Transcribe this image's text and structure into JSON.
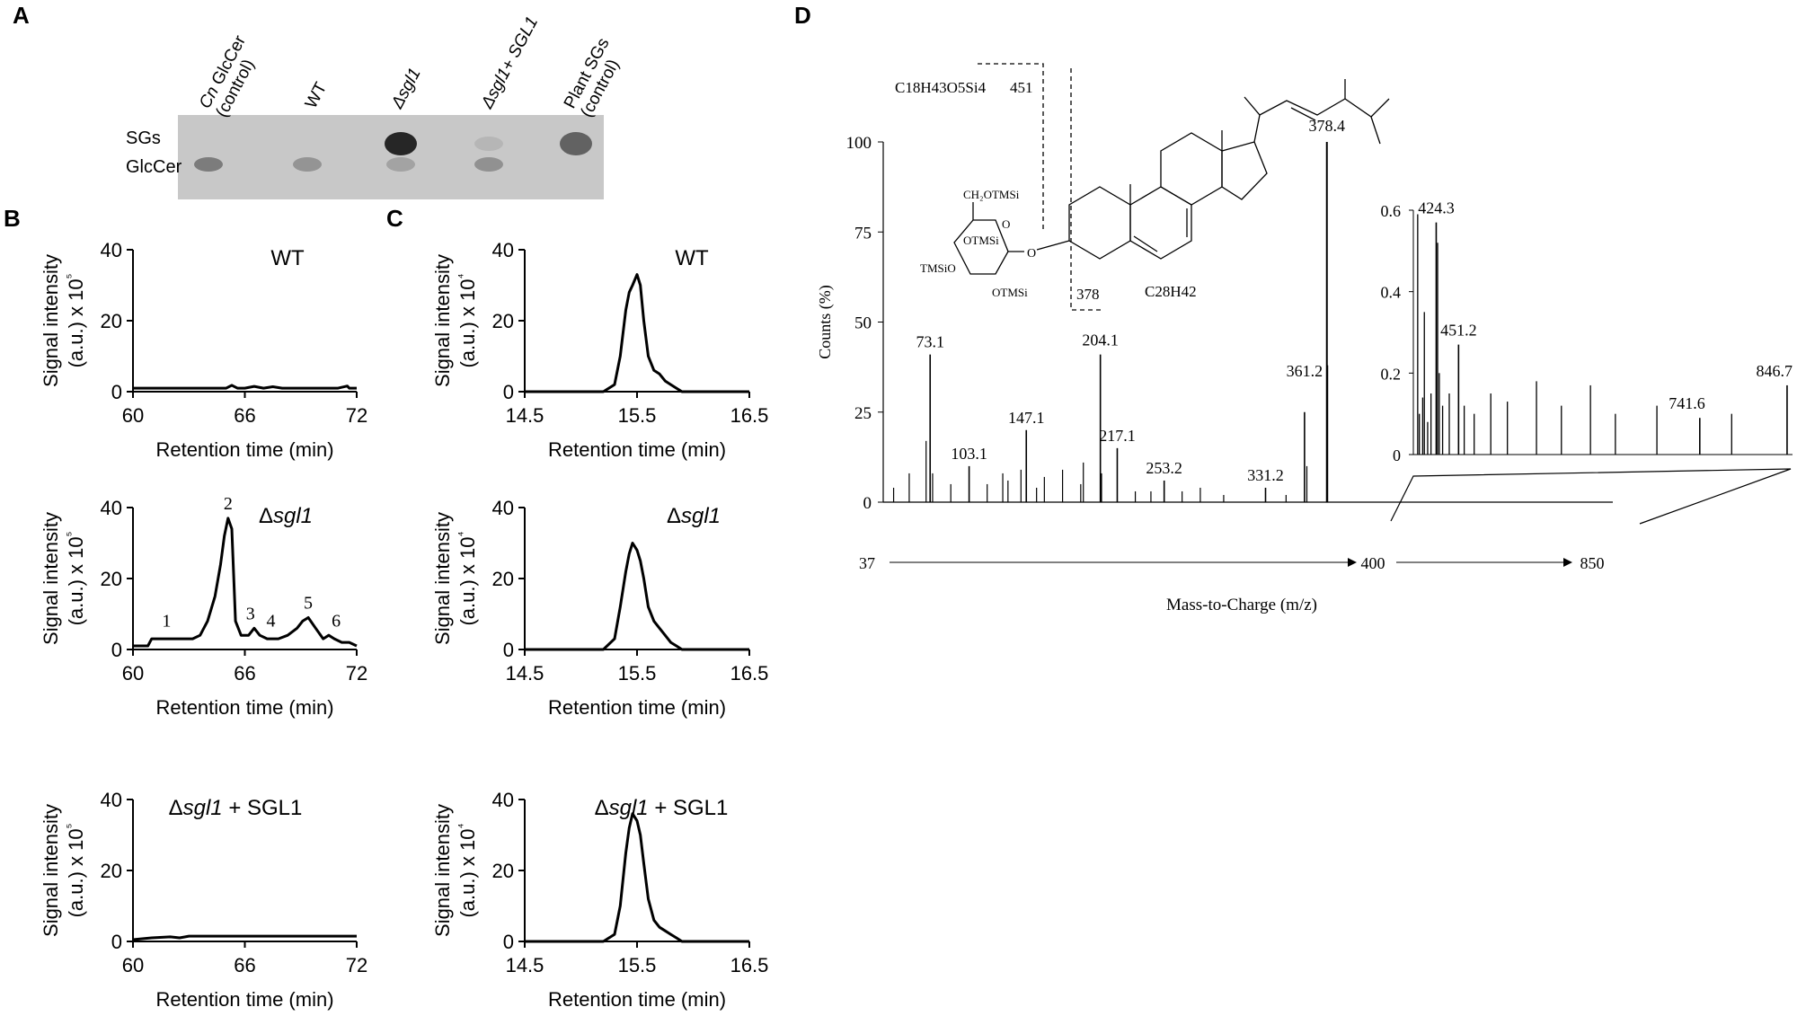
{
  "panel_letters": [
    "A",
    "B",
    "C",
    "D"
  ],
  "tlc": {
    "lane_labels": [
      "Cn GlcCer (control)",
      "WT",
      "Δsgl1",
      "Δsgl1+ SGL1",
      "Plant SGs (control)"
    ],
    "row_labels": [
      "SGs",
      "GlcCer"
    ],
    "bands": [
      {
        "lane": 0,
        "row": "GlcCer",
        "intensity": 0.45
      },
      {
        "lane": 1,
        "row": "GlcCer",
        "intensity": 0.3
      },
      {
        "lane": 2,
        "row": "SGs",
        "intensity": 0.95
      },
      {
        "lane": 2,
        "row": "GlcCer",
        "intensity": 0.22
      },
      {
        "lane": 3,
        "row": "SGs",
        "intensity": 0.1
      },
      {
        "lane": 3,
        "row": "GlcCer",
        "intensity": 0.32
      },
      {
        "lane": 4,
        "row": "SGs",
        "intensity": 0.6
      }
    ],
    "colors": {
      "background": "#c8c8c8",
      "band": "#1e1e1e"
    }
  },
  "chart_data": [
    {
      "panel": "B",
      "type": "line",
      "title": "WT",
      "xlabel": "Retention time (min)",
      "ylabel": "Signal intensity (a.u.) x 10⁵",
      "xlim": [
        60,
        72
      ],
      "ylim": [
        0,
        40
      ],
      "xticks": [
        "60",
        "66",
        "72"
      ],
      "yticks": [
        "0",
        "20",
        "40"
      ],
      "series": [
        {
          "x": [
            60,
            62,
            64,
            65,
            65.3,
            65.6,
            66,
            66.5,
            67,
            67.5,
            68,
            68.4,
            70,
            71,
            71.5,
            71.6,
            72
          ],
          "y": [
            1,
            1,
            1,
            1,
            1.8,
            1,
            1,
            1.5,
            1,
            1.4,
            1,
            1,
            1,
            1,
            1.6,
            1,
            1
          ]
        }
      ]
    },
    {
      "panel": "B",
      "type": "line",
      "title": "Δsgl1",
      "xlabel": "Retention time (min)",
      "ylabel": "Signal intensity (a.u.) x 10⁵",
      "xlim": [
        60,
        72
      ],
      "ylim": [
        0,
        40
      ],
      "xticks": [
        "60",
        "66",
        "72"
      ],
      "yticks": [
        "0",
        "20",
        "40"
      ],
      "series": [
        {
          "x": [
            60,
            60.8,
            61,
            61.6,
            62.5,
            63.2,
            63.6,
            64,
            64.4,
            64.7,
            64.9,
            65.1,
            65.3,
            65.5,
            65.8,
            66.2,
            66.5,
            66.8,
            67.2,
            67.8,
            68.3,
            68.8,
            69.1,
            69.4,
            69.8,
            70.2,
            70.5,
            70.8,
            71.2,
            71.6,
            72
          ],
          "y": [
            1,
            1,
            3,
            3,
            3,
            3,
            4,
            8,
            15,
            24,
            32,
            37,
            34,
            8,
            4,
            4,
            6,
            4,
            3,
            3,
            4,
            6,
            8,
            9,
            6,
            3,
            4,
            3,
            2,
            2,
            1
          ]
        }
      ],
      "annotations": [
        "1",
        "2",
        "3",
        "4",
        "5",
        "6"
      ]
    },
    {
      "panel": "B",
      "type": "line",
      "title": "Δsgl1 + SGL1",
      "xlabel": "Retention time (min)",
      "ylabel": "Signal intensity (a.u.) x 10⁵",
      "xlim": [
        60,
        72
      ],
      "ylim": [
        0,
        40
      ],
      "xticks": [
        "60",
        "66",
        "72"
      ],
      "yticks": [
        "0",
        "20",
        "40"
      ],
      "series": [
        {
          "x": [
            60,
            61,
            62,
            62.5,
            63,
            64,
            66,
            68,
            70,
            72
          ],
          "y": [
            0.5,
            1,
            1.3,
            1,
            1.5,
            1.5,
            1.5,
            1.5,
            1.5,
            1.5
          ]
        }
      ]
    },
    {
      "panel": "C",
      "type": "line",
      "title": "WT",
      "xlabel": "Retention time (min)",
      "ylabel": "Signal intensity (a.u.) x 10⁴",
      "xlim": [
        14.5,
        16.5
      ],
      "ylim": [
        0,
        40
      ],
      "xticks": [
        "14.5",
        "15.5",
        "16.5"
      ],
      "yticks": [
        "0",
        "20",
        "40"
      ],
      "series": [
        {
          "x": [
            14.5,
            15.2,
            15.3,
            15.35,
            15.4,
            15.43,
            15.46,
            15.5,
            15.53,
            15.56,
            15.6,
            15.65,
            15.7,
            15.75,
            15.8,
            15.85,
            15.9,
            16.0,
            16.5
          ],
          "y": [
            0,
            0,
            2,
            10,
            23,
            28,
            30,
            33,
            30,
            20,
            10,
            6,
            5,
            3,
            2,
            1,
            0,
            0,
            0
          ]
        }
      ]
    },
    {
      "panel": "C",
      "type": "line",
      "title": "Δsgl1",
      "xlabel": "Retention time (min)",
      "ylabel": "Signal intensity (a.u.) x 10⁴",
      "xlim": [
        14.5,
        16.5
      ],
      "ylim": [
        0,
        40
      ],
      "xticks": [
        "14.5",
        "15.5",
        "16.5"
      ],
      "yticks": [
        "0",
        "20",
        "40"
      ],
      "series": [
        {
          "x": [
            14.5,
            15.2,
            15.3,
            15.35,
            15.4,
            15.43,
            15.46,
            15.5,
            15.53,
            15.56,
            15.6,
            15.65,
            15.7,
            15.75,
            15.8,
            15.85,
            15.9,
            16.0,
            16.5
          ],
          "y": [
            0,
            0,
            3,
            12,
            22,
            27,
            30,
            28,
            25,
            20,
            12,
            8,
            6,
            4,
            2,
            1,
            0,
            0,
            0
          ]
        }
      ]
    },
    {
      "panel": "C",
      "type": "line",
      "title": "Δsgl1 + SGL1",
      "xlabel": "Retention time (min)",
      "ylabel": "Signal intensity (a.u.) x 10⁴",
      "xlim": [
        14.5,
        16.5
      ],
      "ylim": [
        0,
        40
      ],
      "xticks": [
        "14.5",
        "15.5",
        "16.5"
      ],
      "yticks": [
        "0",
        "20",
        "40"
      ],
      "series": [
        {
          "x": [
            14.5,
            15.2,
            15.3,
            15.35,
            15.4,
            15.43,
            15.46,
            15.5,
            15.53,
            15.56,
            15.6,
            15.65,
            15.7,
            15.75,
            15.8,
            15.85,
            15.9,
            16.0,
            16.5
          ],
          "y": [
            0,
            0,
            2,
            10,
            25,
            32,
            36,
            34,
            30,
            22,
            12,
            6,
            4,
            3,
            2,
            1,
            0,
            0,
            0
          ]
        }
      ]
    },
    {
      "panel": "D",
      "type": "bar",
      "title": "",
      "xlabel": "Mass-to-Charge (m/z)",
      "ylabel": "Counts (%)",
      "xlim": [
        37,
        400
      ],
      "ylim": [
        0,
        100
      ],
      "yticks": [
        "0",
        "25",
        "50",
        "75",
        "100"
      ],
      "axis_markers": [
        "37",
        "400",
        "850"
      ],
      "labeled_peaks": [
        {
          "mz": 73.1,
          "counts": 41,
          "label": "73.1"
        },
        {
          "mz": 103.1,
          "counts": 10,
          "label": "103.1"
        },
        {
          "mz": 147.1,
          "counts": 20,
          "label": "147.1"
        },
        {
          "mz": 204.1,
          "counts": 41,
          "label": "204.1"
        },
        {
          "mz": 217.1,
          "counts": 15,
          "label": "217.1"
        },
        {
          "mz": 253.2,
          "counts": 6,
          "label": "253.2"
        },
        {
          "mz": 331.2,
          "counts": 4,
          "label": "331.2"
        },
        {
          "mz": 361.2,
          "counts": 25,
          "label": "361.2"
        },
        {
          "mz": 378.4,
          "counts": 100,
          "label": "378.4"
        }
      ],
      "minor_peaks": [
        {
          "mz": 45,
          "counts": 4
        },
        {
          "mz": 57,
          "counts": 8
        },
        {
          "mz": 70,
          "counts": 17
        },
        {
          "mz": 75,
          "counts": 8
        },
        {
          "mz": 89,
          "counts": 5
        },
        {
          "mz": 117,
          "counts": 5
        },
        {
          "mz": 129,
          "counts": 8
        },
        {
          "mz": 133,
          "counts": 6
        },
        {
          "mz": 143,
          "counts": 9
        },
        {
          "mz": 155,
          "counts": 4
        },
        {
          "mz": 161,
          "counts": 7
        },
        {
          "mz": 175,
          "counts": 9
        },
        {
          "mz": 189,
          "counts": 5
        },
        {
          "mz": 191,
          "counts": 11
        },
        {
          "mz": 205,
          "counts": 8
        },
        {
          "mz": 231,
          "counts": 3
        },
        {
          "mz": 243,
          "counts": 3
        },
        {
          "mz": 267,
          "counts": 3
        },
        {
          "mz": 281,
          "counts": 4
        },
        {
          "mz": 299,
          "counts": 2
        },
        {
          "mz": 347,
          "counts": 2
        },
        {
          "mz": 363,
          "counts": 10
        },
        {
          "mz": 379,
          "counts": 38
        }
      ],
      "inset": {
        "xlim": [
          400,
          850
        ],
        "ylim": [
          0,
          0.6
        ],
        "yticks": [
          "0",
          "0.2",
          "0.4",
          "0.6"
        ],
        "labeled_peaks": [
          {
            "mz": 424.3,
            "counts": 0.57,
            "label": "424.3"
          },
          {
            "mz": 451.2,
            "counts": 0.27,
            "label": "451.2"
          },
          {
            "mz": 741.6,
            "counts": 0.09,
            "label": "741.6"
          },
          {
            "mz": 846.7,
            "counts": 0.17,
            "label": "846.7"
          }
        ],
        "minor_peaks": [
          {
            "mz": 402,
            "counts": 0.59
          },
          {
            "mz": 404,
            "counts": 0.1
          },
          {
            "mz": 408,
            "counts": 0.14
          },
          {
            "mz": 410,
            "counts": 0.35
          },
          {
            "mz": 414,
            "counts": 0.08
          },
          {
            "mz": 418,
            "counts": 0.15
          },
          {
            "mz": 426,
            "counts": 0.52
          },
          {
            "mz": 428,
            "counts": 0.2
          },
          {
            "mz": 432,
            "counts": 0.12
          },
          {
            "mz": 440,
            "counts": 0.15
          },
          {
            "mz": 458,
            "counts": 0.12
          },
          {
            "mz": 470,
            "counts": 0.1
          },
          {
            "mz": 490,
            "counts": 0.15
          },
          {
            "mz": 510,
            "counts": 0.13
          },
          {
            "mz": 545,
            "counts": 0.18
          },
          {
            "mz": 575,
            "counts": 0.12
          },
          {
            "mz": 610,
            "counts": 0.17
          },
          {
            "mz": 640,
            "counts": 0.1
          },
          {
            "mz": 690,
            "counts": 0.12
          },
          {
            "mz": 780,
            "counts": 0.1
          }
        ]
      }
    }
  ],
  "structure": {
    "sugar_labels": [
      "CH₂OTMSi",
      "O",
      "OTMSi",
      "TMSiO",
      "OTMSi"
    ],
    "linker_label": "O",
    "fragment_left": {
      "formula": "C18H43O5Si4",
      "mz": "451"
    },
    "fragment_right": {
      "formula": "C28H42",
      "mz": "378"
    }
  }
}
